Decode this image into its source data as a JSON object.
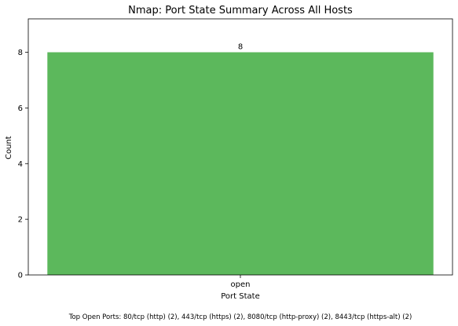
{
  "chart_data": {
    "type": "bar",
    "title": "Nmap: Port State Summary Across All Hosts",
    "xlabel": "Port State",
    "ylabel": "Count",
    "categories": [
      "open"
    ],
    "values": [
      8
    ],
    "data_labels": [
      "8"
    ],
    "ylim": [
      0,
      9.2
    ],
    "yticks": [
      0,
      2,
      4,
      6,
      8
    ],
    "ytick_labels": [
      "0",
      "2",
      "4",
      "6",
      "8"
    ],
    "grid": false,
    "legend": "none",
    "bar_color": "#5cb85c",
    "footnote": "Top Open Ports: 80/tcp (http) (2), 443/tcp (https) (2), 8080/tcp (http-proxy) (2), 8443/tcp (https-alt) (2)"
  }
}
